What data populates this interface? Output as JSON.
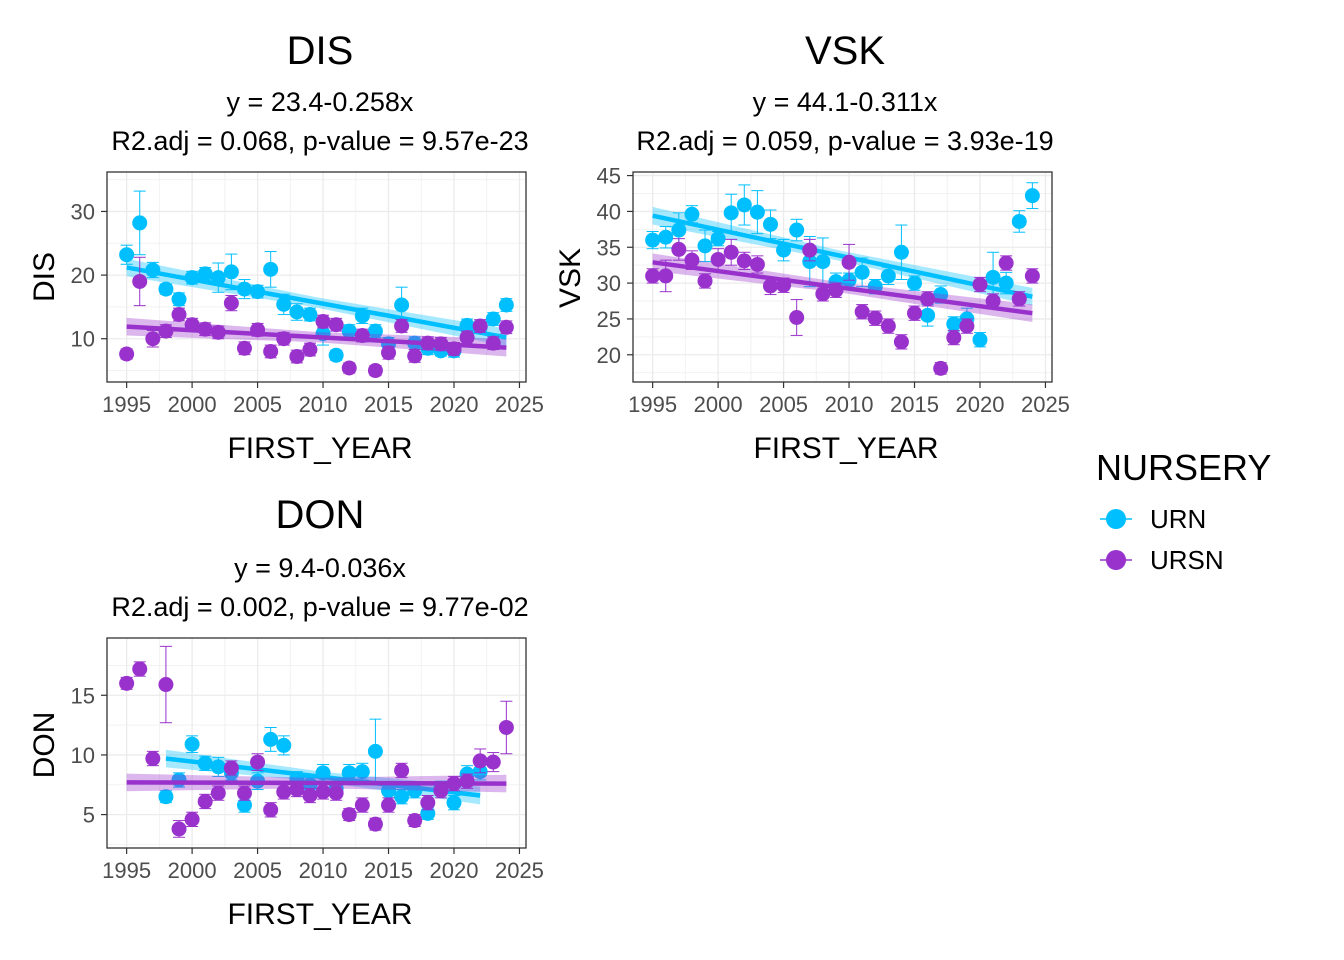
{
  "legend": {
    "title": "NURSERY",
    "items": [
      {
        "label": "URN",
        "color": "#00BFFF"
      },
      {
        "label": "URSN",
        "color": "#9932CC"
      }
    ],
    "placement": "right"
  },
  "chart_data": [
    {
      "type": "scatter",
      "title": "DIS",
      "subtitle1": "y = 23.4-0.258x",
      "subtitle2": "R2.adj = 0.068, p-value = 9.57e-23",
      "xlabel": "FIRST_YEAR",
      "ylabel": "DIS",
      "xlim": [
        1993.5,
        2025.5
      ],
      "ylim": [
        3.2,
        36.2
      ],
      "xticks": [
        1995,
        2000,
        2005,
        2010,
        2015,
        2020,
        2025
      ],
      "yticks": [
        10,
        20,
        30
      ],
      "grid": true,
      "series": [
        {
          "name": "URN",
          "color": "#00BFFF",
          "x": [
            1995,
            1996,
            1997,
            1998,
            1999,
            2000,
            2001,
            2002,
            2003,
            2004,
            2005,
            2006,
            2007,
            2008,
            2009,
            2010,
            2011,
            2012,
            2013,
            2014,
            2015,
            2016,
            2017,
            2018,
            2019,
            2020,
            2021,
            2022,
            2023,
            2024
          ],
          "y": [
            23.2,
            28.2,
            20.8,
            17.8,
            16.2,
            19.6,
            20.2,
            19.6,
            20.5,
            17.8,
            17.4,
            20.9,
            15.4,
            14.2,
            13.8,
            10.8,
            7.4,
            11.2,
            13.6,
            11.2,
            9.2,
            15.3,
            9.3,
            8.5,
            8.1,
            8.1,
            12.1,
            11.8,
            13.1,
            15.3
          ],
          "err": [
            1.5,
            5.0,
            1.2,
            0.8,
            1.0,
            1.0,
            1.0,
            2.3,
            2.8,
            1.5,
            1.0,
            2.8,
            1.6,
            1.3,
            1.0,
            1.8,
            0.8,
            1.0,
            1.2,
            1.0,
            1.0,
            2.8,
            1.0,
            1.0,
            0.8,
            1.0,
            1.0,
            1.0,
            1.0,
            1.0
          ],
          "fit": {
            "x": [
              1995,
              2024
            ],
            "y": [
              21.2,
              10.2
            ]
          }
        },
        {
          "name": "URSN",
          "color": "#9932CC",
          "x": [
            1995,
            1996,
            1997,
            1998,
            1999,
            2000,
            2001,
            2002,
            2003,
            2004,
            2005,
            2006,
            2007,
            2008,
            2009,
            2010,
            2011,
            2012,
            2013,
            2014,
            2015,
            2016,
            2017,
            2018,
            2019,
            2020,
            2021,
            2022,
            2023,
            2024
          ],
          "y": [
            7.6,
            19.0,
            10.0,
            11.2,
            13.8,
            12.2,
            11.5,
            11.0,
            15.6,
            8.5,
            11.4,
            8.0,
            10.0,
            7.2,
            8.3,
            12.7,
            12.2,
            5.4,
            10.5,
            5.0,
            7.8,
            12.0,
            7.3,
            9.3,
            9.2,
            8.4,
            10.2,
            12.0,
            9.3,
            11.8
          ],
          "err": [
            0.8,
            3.8,
            1.3,
            1.0,
            1.0,
            1.0,
            1.0,
            1.0,
            1.2,
            1.0,
            1.0,
            1.0,
            1.0,
            1.0,
            1.0,
            1.0,
            1.0,
            0.8,
            1.0,
            0.8,
            1.0,
            1.0,
            1.0,
            1.0,
            1.0,
            1.0,
            1.0,
            1.0,
            1.0,
            1.0
          ],
          "fit": {
            "x": [
              1995,
              2024
            ],
            "y": [
              11.9,
              8.6
            ]
          }
        }
      ]
    },
    {
      "type": "scatter",
      "title": "VSK",
      "subtitle1": "y = 44.1-0.311x",
      "subtitle2": "R2.adj = 0.059, p-value = 3.93e-19",
      "xlabel": "FIRST_YEAR",
      "ylabel": "VSK",
      "xlim": [
        1993.5,
        2025.5
      ],
      "ylim": [
        16.2,
        45.5
      ],
      "xticks": [
        1995,
        2000,
        2005,
        2010,
        2015,
        2020,
        2025
      ],
      "yticks": [
        20,
        25,
        30,
        35,
        40,
        45
      ],
      "grid": true,
      "series": [
        {
          "name": "URN",
          "color": "#00BFFF",
          "x": [
            1995,
            1996,
            1997,
            1998,
            1999,
            2000,
            2001,
            2002,
            2003,
            2004,
            2005,
            2006,
            2007,
            2008,
            2009,
            2010,
            2011,
            2012,
            2013,
            2014,
            2015,
            2016,
            2017,
            2018,
            2019,
            2020,
            2021,
            2022,
            2023,
            2024
          ],
          "y": [
            36.0,
            36.4,
            37.4,
            39.6,
            35.2,
            36.2,
            39.8,
            40.9,
            39.9,
            38.2,
            34.6,
            37.4,
            33.0,
            33.0,
            30.2,
            30.4,
            31.5,
            29.5,
            31.0,
            34.3,
            30.0,
            25.5,
            28.4,
            24.3,
            25.0,
            22.1,
            30.8,
            30.0,
            38.6,
            42.2
          ],
          "err": [
            1.2,
            1.5,
            2.4,
            1.2,
            2.2,
            1.0,
            2.6,
            2.8,
            3.0,
            2.0,
            1.5,
            1.5,
            3.5,
            3.3,
            1.2,
            1.0,
            2.0,
            1.0,
            1.2,
            3.8,
            1.0,
            1.5,
            1.2,
            1.0,
            1.5,
            1.0,
            3.5,
            1.5,
            1.5,
            1.8
          ],
          "fit": {
            "x": [
              1995,
              2024
            ],
            "y": [
              39.4,
              28.1
            ]
          }
        },
        {
          "name": "URSN",
          "color": "#9932CC",
          "x": [
            1995,
            1996,
            1997,
            1998,
            1999,
            2000,
            2001,
            2002,
            2003,
            2004,
            2005,
            2006,
            2007,
            2008,
            2009,
            2010,
            2011,
            2012,
            2013,
            2014,
            2015,
            2016,
            2017,
            2018,
            2019,
            2020,
            2021,
            2022,
            2023,
            2024
          ],
          "y": [
            31.0,
            31.0,
            34.7,
            33.2,
            30.3,
            33.3,
            34.3,
            33.1,
            32.6,
            29.6,
            29.7,
            25.2,
            34.6,
            28.5,
            29.0,
            32.9,
            26.0,
            25.1,
            24.0,
            21.8,
            25.8,
            27.8,
            18.1,
            22.4,
            24.0,
            29.8,
            27.5,
            32.8,
            27.8,
            31.0
          ],
          "err": [
            1.0,
            2.2,
            1.5,
            1.3,
            1.0,
            1.5,
            1.8,
            1.2,
            1.2,
            1.2,
            1.0,
            2.5,
            1.5,
            1.0,
            1.0,
            2.5,
            1.0,
            1.0,
            1.0,
            1.0,
            1.0,
            1.0,
            0.8,
            1.0,
            1.0,
            1.0,
            1.0,
            1.0,
            1.0,
            1.0
          ],
          "fit": {
            "x": [
              1995,
              2024
            ],
            "y": [
              32.9,
              25.8
            ]
          }
        }
      ]
    },
    {
      "type": "scatter",
      "title": "DON",
      "subtitle1": "y = 9.4-0.036x",
      "subtitle2": "R2.adj = 0.002, p-value = 9.77e-02",
      "xlabel": "FIRST_YEAR",
      "ylabel": "DON",
      "xlim": [
        1993.5,
        2025.5
      ],
      "ylim": [
        2.2,
        19.8
      ],
      "xticks": [
        1995,
        2000,
        2005,
        2010,
        2015,
        2020,
        2025
      ],
      "yticks": [
        5,
        10,
        15
      ],
      "grid": true,
      "series": [
        {
          "name": "URN",
          "color": "#00BFFF",
          "x": [
            1998,
            1999,
            2000,
            2001,
            2002,
            2003,
            2004,
            2005,
            2006,
            2007,
            2008,
            2009,
            2010,
            2011,
            2012,
            2013,
            2014,
            2015,
            2016,
            2017,
            2018,
            2019,
            2020,
            2021,
            2022
          ],
          "y": [
            6.5,
            7.9,
            10.9,
            9.3,
            9.0,
            8.5,
            5.8,
            7.8,
            11.3,
            10.8,
            8.0,
            7.5,
            8.5,
            7.2,
            8.5,
            8.6,
            10.3,
            7.0,
            6.5,
            7.0,
            5.1,
            7.2,
            6.0,
            8.4,
            8.6
          ],
          "err": [
            0.5,
            0.6,
            0.7,
            0.6,
            0.8,
            0.6,
            0.6,
            0.7,
            1.0,
            0.8,
            0.6,
            0.6,
            0.7,
            0.6,
            0.7,
            0.7,
            2.7,
            0.6,
            0.6,
            0.6,
            0.5,
            0.6,
            0.6,
            0.7,
            0.7
          ],
          "fit": {
            "x": [
              1998,
              2022
            ],
            "y": [
              9.7,
              6.6
            ]
          }
        },
        {
          "name": "URSN",
          "color": "#9932CC",
          "x": [
            1995,
            1996,
            1997,
            1998,
            1999,
            2000,
            2001,
            2002,
            2003,
            2004,
            2005,
            2006,
            2007,
            2008,
            2009,
            2010,
            2011,
            2012,
            2013,
            2014,
            2015,
            2016,
            2017,
            2018,
            2019,
            2020,
            2021,
            2022,
            2023,
            2024
          ],
          "y": [
            16.0,
            17.2,
            9.7,
            15.9,
            3.8,
            4.6,
            6.1,
            6.8,
            8.9,
            6.8,
            9.4,
            5.4,
            6.9,
            7.1,
            6.6,
            6.9,
            6.8,
            5.0,
            5.8,
            4.2,
            5.8,
            8.7,
            4.5,
            6.0,
            7.0,
            7.6,
            7.8,
            9.5,
            9.4,
            12.3
          ],
          "err": [
            0.5,
            0.6,
            0.6,
            3.2,
            0.7,
            0.6,
            0.6,
            0.6,
            0.6,
            0.6,
            0.7,
            0.6,
            0.6,
            0.6,
            0.6,
            0.6,
            0.6,
            0.5,
            0.6,
            0.5,
            0.6,
            0.6,
            0.5,
            0.6,
            0.6,
            0.6,
            0.6,
            1.0,
            0.8,
            2.2
          ],
          "fit": {
            "x": [
              1995,
              2024
            ],
            "y": [
              7.7,
              7.6
            ]
          }
        }
      ]
    }
  ]
}
